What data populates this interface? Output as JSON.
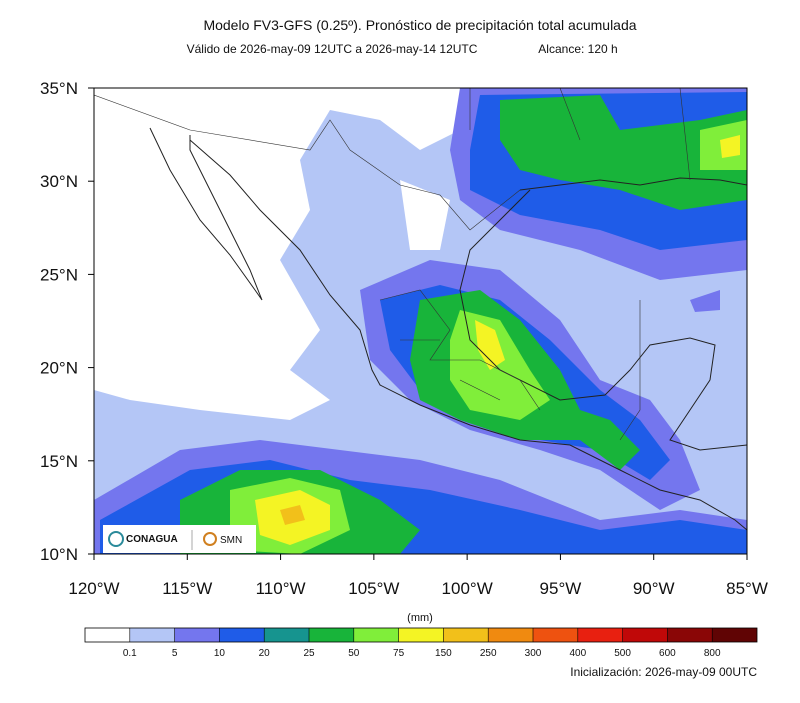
{
  "header": {
    "title": "Modelo FV3-GFS (0.25º). Pronóstico de precipitación total acumulada",
    "valid": "Válido de 2026-may-09 12UTC a 2026-may-14 12UTC",
    "range": "Alcance: 120 h"
  },
  "map": {
    "lat_labels": [
      "35°N",
      "30°N",
      "25°N",
      "20°N",
      "15°N",
      "10°N"
    ],
    "lon_labels": [
      "120°W",
      "115°W",
      "110°W",
      "105°W",
      "100°W",
      "95°W",
      "90°W",
      "85°W"
    ],
    "logos": [
      "CONAGUA",
      "SMN"
    ]
  },
  "colorbar": {
    "unit": "(mm)",
    "labels": [
      "0.1",
      "5",
      "10",
      "20",
      "25",
      "50",
      "75",
      "150",
      "250",
      "300",
      "400",
      "500",
      "600",
      "800"
    ],
    "colors": [
      "#ffffff",
      "#b4c6f6",
      "#7476ee",
      "#1f5ce8",
      "#16948f",
      "#18b43a",
      "#80ee3a",
      "#f4f424",
      "#f2c01a",
      "#f08a10",
      "#ee5210",
      "#e82010",
      "#c00808",
      "#8a0606",
      "#600404"
    ]
  },
  "footer": {
    "initialization": "Inicialización: 2026-may-09 00UTC"
  }
}
